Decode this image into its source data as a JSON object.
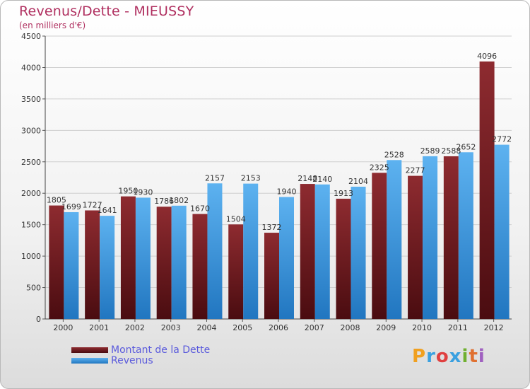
{
  "title": "Revenus/Dette - MIEUSSY",
  "subtitle": "(en milliers d'€)",
  "chart_data": {
    "type": "bar",
    "categories": [
      "2000",
      "2001",
      "2002",
      "2003",
      "2004",
      "2005",
      "2006",
      "2007",
      "2008",
      "2009",
      "2010",
      "2011",
      "2012"
    ],
    "series": [
      {
        "name": "Montant de la Dette",
        "color": "#7a1f24",
        "values": [
          1805,
          1727,
          1950,
          1786,
          1670,
          1504,
          1372,
          2148,
          1913,
          2325,
          2277,
          2588,
          4096
        ],
        "labels": [
          "1805",
          "1727",
          "1950",
          "1786",
          "1670",
          "1504",
          "1372",
          "2148",
          "1913",
          "2325",
          "2277",
          "2588",
          "4096"
        ]
      },
      {
        "name": "Revenus",
        "color": "#3f9be0",
        "values": [
          1699,
          1641,
          1930,
          1802,
          2157,
          2153,
          1940,
          2140,
          2104,
          2528,
          2589,
          2652,
          2772
        ],
        "labels": [
          "1699",
          "1641",
          "1930",
          "1802",
          "2157",
          "2153",
          "1940",
          "2140",
          "2104",
          "2528",
          "2589",
          "2652",
          "2772"
        ]
      }
    ],
    "yticks": [
      "0",
      "500",
      "1000",
      "1500",
      "2000",
      "2500",
      "3000",
      "3500",
      "4000",
      "4500"
    ],
    "ylim": [
      0,
      4500
    ],
    "grid": true,
    "legend_position": "bottom-left"
  },
  "legend": {
    "debt_label": "Montant de la Dette",
    "revenue_label": "Revenus"
  },
  "logo": {
    "letters": [
      "P",
      "r",
      "o",
      "x",
      "i",
      "t",
      "i"
    ],
    "colors": [
      "#f0a020",
      "#3aa0e0",
      "#e04040",
      "#3aa0e0",
      "#70b030",
      "#e07030",
      "#a060c0"
    ]
  }
}
